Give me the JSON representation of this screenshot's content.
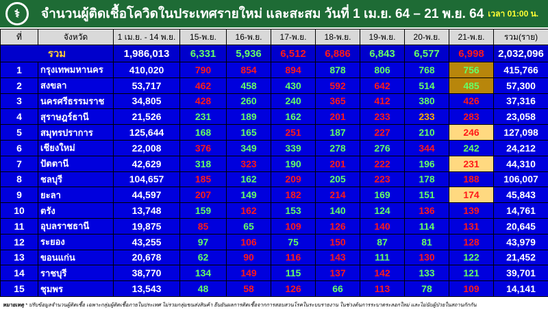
{
  "header": {
    "title": "จำนวนผู้ติดเชื้อโควิดในประเทศรายใหม่ และสะสม วันที่ 1 เม.ย. 64 – 21 พ.ย. 64",
    "time": "เวลา 01:00 น.",
    "logo_icon": "moph-caduceus-logo"
  },
  "columns": [
    "ที่",
    "จังหวัด",
    "1 เม.ย. - 14 พ.ย.",
    "15-พ.ย.",
    "16-พ.ย.",
    "17-พ.ย.",
    "18-พ.ย.",
    "19-พ.ย.",
    "20-พ.ย.",
    "21-พ.ย.",
    "รวม(ราย)"
  ],
  "colors": {
    "red": "#ff1a1a",
    "green": "#66ff66",
    "orange": "#ffaa00",
    "row_bg": "#0000dd",
    "highlight_dark": "#b8860b",
    "highlight_light": "#ffd980",
    "header_bg": "#1e6b35"
  },
  "total": {
    "label": "รวม",
    "base": "1,986,013",
    "daily": [
      {
        "v": "6,331",
        "c": "g"
      },
      {
        "v": "5,936",
        "c": "g"
      },
      {
        "v": "6,512",
        "c": "r"
      },
      {
        "v": "6,886",
        "c": "r"
      },
      {
        "v": "6,843",
        "c": "g"
      },
      {
        "v": "6,577",
        "c": "g"
      },
      {
        "v": "6,998",
        "c": "r"
      }
    ],
    "sum": "2,032,096"
  },
  "rows": [
    {
      "no": "1",
      "name": "กรุงเทพมหานคร",
      "base": "410,020",
      "daily": [
        {
          "v": "790",
          "c": "r"
        },
        {
          "v": "854",
          "c": "r"
        },
        {
          "v": "894",
          "c": "r"
        },
        {
          "v": "878",
          "c": "g"
        },
        {
          "v": "806",
          "c": "g"
        },
        {
          "v": "768",
          "c": "g"
        },
        {
          "v": "756",
          "c": "g",
          "h": "dark"
        }
      ],
      "sum": "415,766"
    },
    {
      "no": "2",
      "name": "สงขลา",
      "base": "53,717",
      "daily": [
        {
          "v": "462",
          "c": "r"
        },
        {
          "v": "458",
          "c": "g"
        },
        {
          "v": "430",
          "c": "g"
        },
        {
          "v": "592",
          "c": "r"
        },
        {
          "v": "642",
          "c": "r"
        },
        {
          "v": "514",
          "c": "g"
        },
        {
          "v": "485",
          "c": "g",
          "h": "dark"
        }
      ],
      "sum": "57,300"
    },
    {
      "no": "3",
      "name": "นครศรีธรรมราช",
      "base": "34,805",
      "daily": [
        {
          "v": "428",
          "c": "r"
        },
        {
          "v": "260",
          "c": "g"
        },
        {
          "v": "240",
          "c": "g"
        },
        {
          "v": "365",
          "c": "r"
        },
        {
          "v": "412",
          "c": "r"
        },
        {
          "v": "380",
          "c": "g"
        },
        {
          "v": "426",
          "c": "r"
        }
      ],
      "sum": "37,316"
    },
    {
      "no": "4",
      "name": "สุราษฎร์ธานี",
      "base": "21,526",
      "daily": [
        {
          "v": "231",
          "c": "g"
        },
        {
          "v": "189",
          "c": "g"
        },
        {
          "v": "162",
          "c": "g"
        },
        {
          "v": "201",
          "c": "r"
        },
        {
          "v": "233",
          "c": "r"
        },
        {
          "v": "233",
          "c": "o"
        },
        {
          "v": "283",
          "c": "r"
        }
      ],
      "sum": "23,058"
    },
    {
      "no": "5",
      "name": "สมุทรปราการ",
      "base": "125,644",
      "daily": [
        {
          "v": "168",
          "c": "g"
        },
        {
          "v": "165",
          "c": "g"
        },
        {
          "v": "251",
          "c": "r"
        },
        {
          "v": "187",
          "c": "g"
        },
        {
          "v": "227",
          "c": "r"
        },
        {
          "v": "210",
          "c": "g"
        },
        {
          "v": "246",
          "c": "r",
          "h": "light"
        }
      ],
      "sum": "127,098"
    },
    {
      "no": "6",
      "name": "เชียงใหม่",
      "base": "22,008",
      "daily": [
        {
          "v": "376",
          "c": "r"
        },
        {
          "v": "349",
          "c": "g"
        },
        {
          "v": "339",
          "c": "g"
        },
        {
          "v": "278",
          "c": "g"
        },
        {
          "v": "276",
          "c": "g"
        },
        {
          "v": "344",
          "c": "r"
        },
        {
          "v": "242",
          "c": "g"
        }
      ],
      "sum": "24,212"
    },
    {
      "no": "7",
      "name": "ปัตตานี",
      "base": "42,629",
      "daily": [
        {
          "v": "318",
          "c": "g"
        },
        {
          "v": "323",
          "c": "r"
        },
        {
          "v": "190",
          "c": "g"
        },
        {
          "v": "201",
          "c": "r"
        },
        {
          "v": "222",
          "c": "r"
        },
        {
          "v": "196",
          "c": "g"
        },
        {
          "v": "231",
          "c": "r",
          "h": "light"
        }
      ],
      "sum": "44,310"
    },
    {
      "no": "8",
      "name": "ชลบุรี",
      "base": "104,657",
      "daily": [
        {
          "v": "185",
          "c": "r"
        },
        {
          "v": "162",
          "c": "g"
        },
        {
          "v": "209",
          "c": "r"
        },
        {
          "v": "205",
          "c": "g"
        },
        {
          "v": "223",
          "c": "r"
        },
        {
          "v": "178",
          "c": "g"
        },
        {
          "v": "188",
          "c": "r"
        }
      ],
      "sum": "106,007"
    },
    {
      "no": "9",
      "name": "ยะลา",
      "base": "44,597",
      "daily": [
        {
          "v": "207",
          "c": "r"
        },
        {
          "v": "149",
          "c": "g"
        },
        {
          "v": "182",
          "c": "r"
        },
        {
          "v": "214",
          "c": "r"
        },
        {
          "v": "169",
          "c": "g"
        },
        {
          "v": "151",
          "c": "g"
        },
        {
          "v": "174",
          "c": "r",
          "h": "light"
        }
      ],
      "sum": "45,843"
    },
    {
      "no": "10",
      "name": "ตรัง",
      "base": "13,748",
      "daily": [
        {
          "v": "159",
          "c": "g"
        },
        {
          "v": "162",
          "c": "r"
        },
        {
          "v": "153",
          "c": "g"
        },
        {
          "v": "140",
          "c": "g"
        },
        {
          "v": "124",
          "c": "g"
        },
        {
          "v": "136",
          "c": "r"
        },
        {
          "v": "139",
          "c": "r"
        }
      ],
      "sum": "14,761"
    },
    {
      "no": "11",
      "name": "อุบลราชธานี",
      "base": "19,875",
      "daily": [
        {
          "v": "85",
          "c": "r"
        },
        {
          "v": "65",
          "c": "g"
        },
        {
          "v": "109",
          "c": "r"
        },
        {
          "v": "126",
          "c": "r"
        },
        {
          "v": "140",
          "c": "r"
        },
        {
          "v": "114",
          "c": "g"
        },
        {
          "v": "131",
          "c": "r"
        }
      ],
      "sum": "20,645"
    },
    {
      "no": "12",
      "name": "ระยอง",
      "base": "43,255",
      "daily": [
        {
          "v": "97",
          "c": "g"
        },
        {
          "v": "106",
          "c": "r"
        },
        {
          "v": "75",
          "c": "g"
        },
        {
          "v": "150",
          "c": "r"
        },
        {
          "v": "87",
          "c": "g"
        },
        {
          "v": "81",
          "c": "g"
        },
        {
          "v": "128",
          "c": "r"
        }
      ],
      "sum": "43,979"
    },
    {
      "no": "13",
      "name": "ขอนแก่น",
      "base": "20,678",
      "daily": [
        {
          "v": "62",
          "c": "g"
        },
        {
          "v": "90",
          "c": "r"
        },
        {
          "v": "116",
          "c": "r"
        },
        {
          "v": "143",
          "c": "r"
        },
        {
          "v": "111",
          "c": "g"
        },
        {
          "v": "130",
          "c": "r"
        },
        {
          "v": "122",
          "c": "g"
        }
      ],
      "sum": "21,452"
    },
    {
      "no": "14",
      "name": "ราชบุรี",
      "base": "38,770",
      "daily": [
        {
          "v": "134",
          "c": "g"
        },
        {
          "v": "149",
          "c": "r"
        },
        {
          "v": "115",
          "c": "g"
        },
        {
          "v": "137",
          "c": "r"
        },
        {
          "v": "142",
          "c": "r"
        },
        {
          "v": "133",
          "c": "g"
        },
        {
          "v": "121",
          "c": "g"
        }
      ],
      "sum": "39,701"
    },
    {
      "no": "15",
      "name": "ชุมพร",
      "base": "13,543",
      "daily": [
        {
          "v": "48",
          "c": "g"
        },
        {
          "v": "58",
          "c": "r"
        },
        {
          "v": "126",
          "c": "r"
        },
        {
          "v": "66",
          "c": "g"
        },
        {
          "v": "113",
          "c": "r"
        },
        {
          "v": "78",
          "c": "g"
        },
        {
          "v": "109",
          "c": "r"
        }
      ],
      "sum": "14,141"
    }
  ],
  "footnote": {
    "label": "หมายเหตุ",
    "text": "* ปรับข้อมูลจำนวนผู้ติดเชื้อ เฉพาะกลุ่มผู้ติดเชื้อภายในประเทศ ไม่รวมกลุ่มขนส่งสินค้า ยืนยันผลการติดเชื้อจากการสอบสวนโรคในระบบรายงาน ในช่วงต้นการระบาดระลอกใหม่ และไม่นับผู้ป่วยในสถานกักกัน"
  }
}
